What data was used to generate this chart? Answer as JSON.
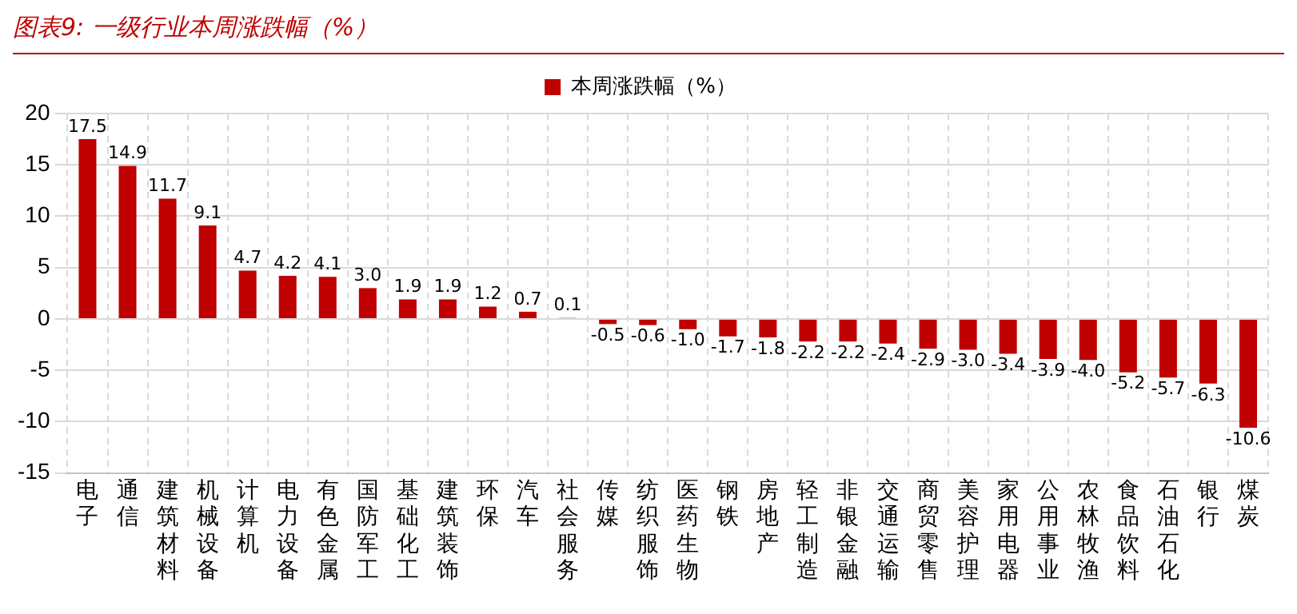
{
  "chart_data": {
    "type": "bar",
    "title": "图表9: 一级行业本周涨跌幅（%）",
    "categories": [
      "电子",
      "通信",
      "建筑材料",
      "机械设备",
      "计算机",
      "电力设备",
      "有色金属",
      "国防军工",
      "基础化工",
      "建筑装饰",
      "环保",
      "汽车",
      "社会服务",
      "传媒",
      "纺织服饰",
      "医药生物",
      "钢铁",
      "房地产",
      "轻工制造",
      "非银金融",
      "交通运输",
      "商贸零售",
      "美容护理",
      "家用电器",
      "公用事业",
      "农林牧渔",
      "食品饮料",
      "石油石化",
      "银行",
      "煤炭"
    ],
    "series": [
      {
        "name": "本周涨跌幅（%）",
        "color": "#c00000",
        "values": [
          17.5,
          14.9,
          11.7,
          9.1,
          4.7,
          4.2,
          4.1,
          3.0,
          1.9,
          1.9,
          1.2,
          0.7,
          0.1,
          -0.5,
          -0.6,
          -1.0,
          -1.7,
          -1.8,
          -2.2,
          -2.2,
          -2.4,
          -2.9,
          -3.0,
          -3.4,
          -3.9,
          -4.0,
          -5.2,
          -5.7,
          -6.3,
          -10.6
        ],
        "value_labels": [
          "17.5",
          "14.9",
          "11.7",
          "9.1",
          "4.7",
          "4.2",
          "4.1",
          "3.0",
          "1.9",
          "1.9",
          "1.2",
          "0.7",
          "0.1",
          "-0.5",
          "-0.6",
          "-1.0",
          "-1.7",
          "-1.8",
          "-2.2",
          "-2.2",
          "-2.4",
          "-2.9",
          "-3.0",
          "-3.4",
          "-3.9",
          "-4.0",
          "-5.2",
          "-5.7",
          "-6.3",
          "-10.6"
        ]
      }
    ],
    "ylim": [
      -15,
      20
    ],
    "yticks": [
      -15,
      -10,
      -5,
      0,
      5,
      10,
      15,
      20
    ],
    "grid": true,
    "legend": "top"
  }
}
